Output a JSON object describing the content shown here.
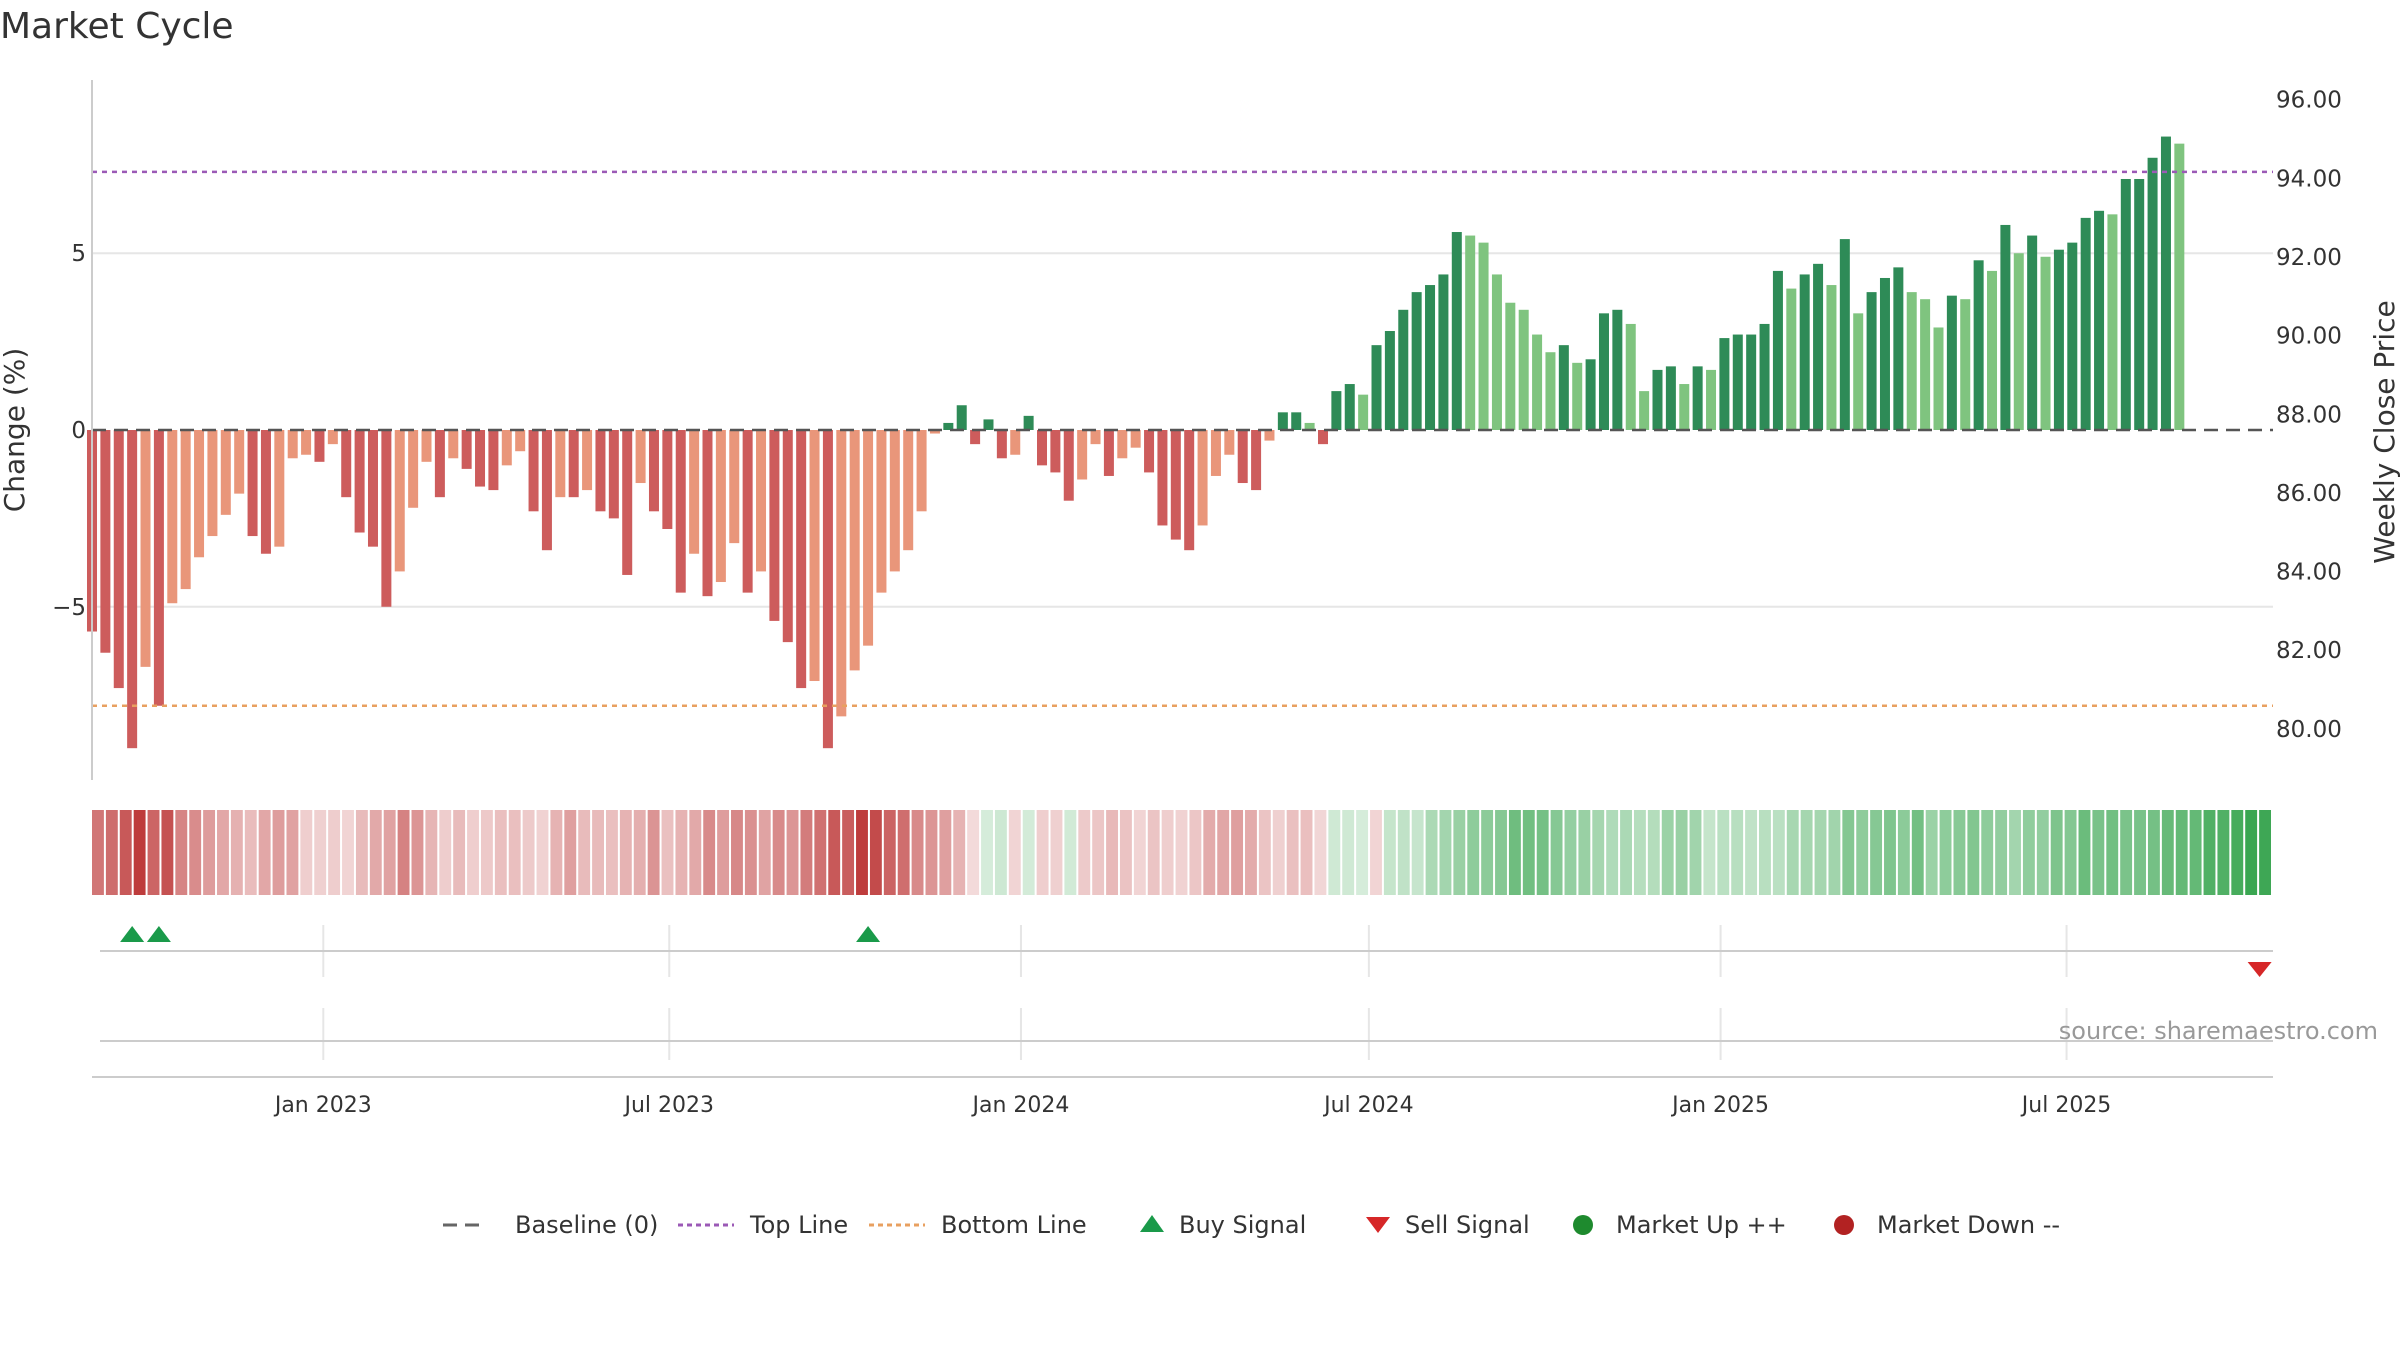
{
  "chart_data": {
    "type": "bar",
    "title": "Market Cycle",
    "ylabel": "Change (%)",
    "y2label": "Weekly Close Price",
    "source": "source: sharemaestro.com",
    "ylim": [
      -9.9,
      9.9
    ],
    "y2lim": [
      78.7,
      96.5
    ],
    "yticks": [
      {
        "v": 5,
        "label": "5"
      },
      {
        "v": 0,
        "label": "0"
      },
      {
        "v": -5,
        "label": "−5"
      }
    ],
    "y2ticks": [
      {
        "v": 80,
        "label": "80.00"
      },
      {
        "v": 82,
        "label": "82.00"
      },
      {
        "v": 84,
        "label": "84.00"
      },
      {
        "v": 86,
        "label": "86.00"
      },
      {
        "v": 88,
        "label": "88.00"
      },
      {
        "v": 90,
        "label": "90.00"
      },
      {
        "v": 92,
        "label": "92.00"
      },
      {
        "v": 94,
        "label": "94.00"
      },
      {
        "v": 96,
        "label": "96.00"
      }
    ],
    "x_start": "2022-09-02",
    "x_end": "2025-10-17",
    "xticks": [
      {
        "date": "2023-01-01",
        "label": "Jan 2023"
      },
      {
        "date": "2023-07-01",
        "label": "Jul 2023"
      },
      {
        "date": "2024-01-01",
        "label": "Jan 2024"
      },
      {
        "date": "2024-07-01",
        "label": "Jul 2024"
      },
      {
        "date": "2025-01-01",
        "label": "Jan 2025"
      },
      {
        "date": "2025-07-01",
        "label": "Jul 2025"
      }
    ],
    "top_line": 7.3,
    "bottom_line": -7.8,
    "baseline": 0,
    "first_week": "2022-09-02",
    "weekly_change": [
      -5.7,
      -6.3,
      -7.3,
      -9.0,
      -6.7,
      -7.8,
      -4.9,
      -4.5,
      -3.6,
      -3.0,
      -2.4,
      -1.8,
      -3.0,
      -3.5,
      -3.3,
      -0.8,
      -0.7,
      -0.9,
      -0.4,
      -1.9,
      -2.9,
      -3.3,
      -5.0,
      -4.0,
      -2.2,
      -0.9,
      -1.9,
      -0.8,
      -1.1,
      -1.6,
      -1.7,
      -1.0,
      -0.6,
      -2.3,
      -3.4,
      -1.9,
      -1.9,
      -1.7,
      -2.3,
      -2.5,
      -4.1,
      -1.5,
      -2.3,
      -2.8,
      -4.6,
      -3.5,
      -4.7,
      -4.3,
      -3.2,
      -4.6,
      -4.0,
      -5.4,
      -6.0,
      -7.3,
      -7.1,
      -9.0,
      -8.1,
      -6.8,
      -6.1,
      -4.6,
      -4.0,
      -3.4,
      -2.3,
      -0.1,
      0.2,
      0.7,
      -0.4,
      0.3,
      -0.8,
      -0.7,
      0.4,
      -1.0,
      -1.2,
      -2.0,
      -1.4,
      -0.4,
      -1.3,
      -0.8,
      -0.5,
      -1.2,
      -2.7,
      -3.1,
      -3.4,
      -2.7,
      -1.3,
      -0.7,
      -1.5,
      -1.7,
      -0.3,
      0.5,
      0.5,
      0.2,
      -0.4,
      1.1,
      1.3,
      1.0,
      2.4,
      2.8,
      3.4,
      3.9,
      4.1,
      4.4,
      5.6,
      5.5,
      5.3,
      4.4,
      3.6,
      3.4,
      2.7,
      2.2,
      2.4,
      1.9,
      2.0,
      3.3,
      3.4,
      3.0,
      1.1,
      1.7,
      1.8,
      1.3,
      1.8,
      1.7,
      2.6,
      2.7,
      2.7,
      3.0,
      4.5,
      4.0,
      4.4,
      4.7,
      4.1,
      5.4,
      3.3,
      3.9,
      4.3,
      4.6,
      3.9,
      3.7,
      2.9,
      3.8,
      3.7,
      4.8,
      4.5,
      5.8,
      5.0,
      5.5,
      4.9,
      5.1,
      5.3,
      6.0,
      6.2,
      6.1,
      7.1,
      7.1,
      7.7,
      8.3,
      8.1
    ],
    "buy_signals": [
      "2022-09-23",
      "2022-10-07",
      "2023-10-13"
    ],
    "sell_signals": [
      "2025-10-10"
    ],
    "legend": [
      {
        "label": "Baseline (0)",
        "kind": "dash",
        "color": "#666666"
      },
      {
        "label": "Top Line",
        "kind": "dot",
        "color": "#9b59b6"
      },
      {
        "label": "Bottom Line",
        "kind": "dot",
        "color": "#e8a060"
      },
      {
        "label": "Buy Signal",
        "kind": "tri-up",
        "color": "#1a9a4a"
      },
      {
        "label": "Sell Signal",
        "kind": "tri-down",
        "color": "#d62728"
      },
      {
        "label": "Market Up ++",
        "kind": "circle",
        "color": "#1e8a2e"
      },
      {
        "label": "Market Down --",
        "kind": "circle",
        "color": "#b22222"
      }
    ],
    "grid": true
  },
  "colors": {
    "neg_dark": "#cd5c5c",
    "neg_light": "#e9967a",
    "pos_dark": "#2e8b57",
    "pos_light": "#7fc47f",
    "grid": "#e6e6e6",
    "axis": "#cccccc"
  }
}
